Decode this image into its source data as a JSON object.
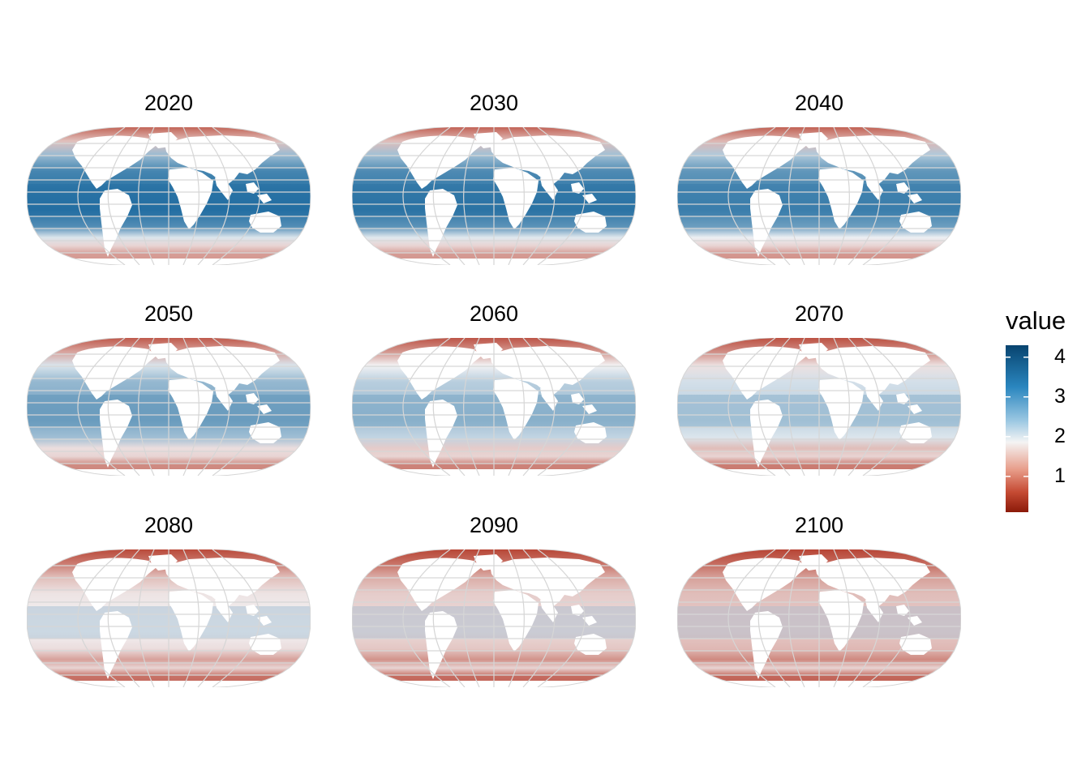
{
  "map_data": {
    "type": "faceted-choropleth-map",
    "projection": "Robinson",
    "variable": "value",
    "panels": [
      {
        "title": "2020",
        "level": 0.92
      },
      {
        "title": "2030",
        "level": 0.9
      },
      {
        "title": "2040",
        "level": 0.86
      },
      {
        "title": "2050",
        "level": 0.74
      },
      {
        "title": "2060",
        "level": 0.66
      },
      {
        "title": "2070",
        "level": 0.6
      },
      {
        "title": "2080",
        "level": 0.48
      },
      {
        "title": "2090",
        "level": 0.42
      },
      {
        "title": "2100",
        "level": 0.38
      }
    ],
    "legend": {
      "title": "value",
      "ticks": [
        "4",
        "3",
        "2",
        "1"
      ],
      "tick_values": [
        4,
        3,
        2,
        1
      ],
      "range": [
        0.1,
        4.3
      ],
      "colors": {
        "low": "#8b1a09",
        "mid": "#f4f4f4",
        "high": "#0b4f7f"
      }
    },
    "grid": true,
    "colors": {
      "ocean_high": "#0b6fa8",
      "ocean_mid": "#f2f4f6",
      "ocean_low": "#b4321f",
      "graticule": "#d8d8d8"
    }
  }
}
